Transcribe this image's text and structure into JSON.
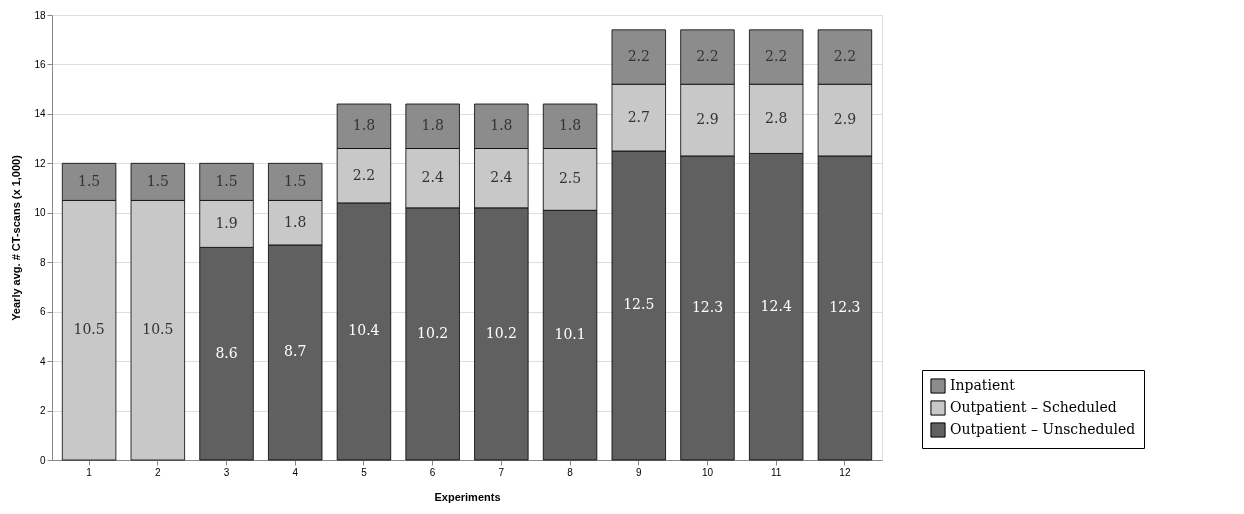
{
  "chart_data": {
    "type": "bar",
    "stacked": true,
    "xlabel": "Experiments",
    "ylabel": "Yearly avg. # CT-scans (x 1,000)",
    "categories": [
      "1",
      "2",
      "3",
      "4",
      "5",
      "6",
      "7",
      "8",
      "9",
      "10",
      "11",
      "12"
    ],
    "series": [
      {
        "name": "Outpatient – Unscheduled",
        "color": "#606060",
        "values": [
          null,
          null,
          8.6,
          8.7,
          10.4,
          10.2,
          10.2,
          10.1,
          12.5,
          12.3,
          12.4,
          12.3
        ]
      },
      {
        "name": "Outpatient – Scheduled",
        "color": "#c8c8c8",
        "values": [
          10.5,
          10.5,
          1.9,
          1.8,
          2.2,
          2.4,
          2.4,
          2.5,
          2.7,
          2.9,
          2.8,
          2.9
        ]
      },
      {
        "name": "Inpatient",
        "color": "#8c8c8c",
        "values": [
          1.5,
          1.5,
          1.5,
          1.5,
          1.8,
          1.8,
          1.8,
          1.8,
          2.2,
          2.2,
          2.2,
          2.2
        ]
      }
    ],
    "ylim": [
      0,
      18
    ],
    "yticks": [
      0,
      2,
      4,
      6,
      8,
      10,
      12,
      14,
      16,
      18
    ],
    "grid": "y",
    "legend": "right",
    "data_labels": true
  }
}
